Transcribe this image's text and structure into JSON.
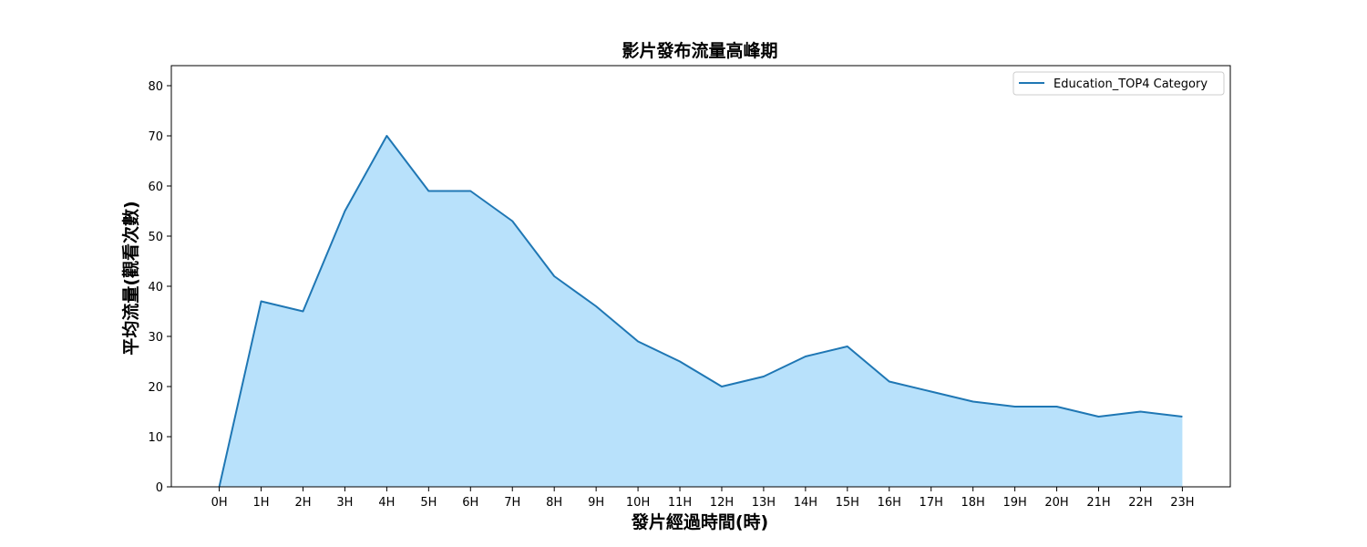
{
  "chart_data": {
    "type": "area",
    "title": "影片發布流量高峰期",
    "xlabel": "發片經過時間(時)",
    "ylabel": "平均流量(觀看次數)",
    "categories": [
      "0H",
      "1H",
      "2H",
      "3H",
      "4H",
      "5H",
      "6H",
      "7H",
      "8H",
      "9H",
      "10H",
      "11H",
      "12H",
      "13H",
      "14H",
      "15H",
      "16H",
      "17H",
      "18H",
      "19H",
      "20H",
      "21H",
      "22H",
      "23H"
    ],
    "series": [
      {
        "name": "Education_TOP4 Category",
        "values": [
          0,
          37,
          35,
          55,
          70,
          59,
          59,
          53,
          42,
          36,
          29,
          25,
          20,
          22,
          26,
          28,
          21,
          19,
          17,
          16,
          16,
          14,
          15,
          14
        ],
        "line_color": "#1f77b4",
        "fill_color": "#b8e1fb"
      }
    ],
    "ylim": [
      0,
      84
    ],
    "yticks": [
      0,
      10,
      20,
      30,
      40,
      50,
      60,
      70,
      80
    ],
    "grid": false,
    "legend_position": "top-right"
  }
}
